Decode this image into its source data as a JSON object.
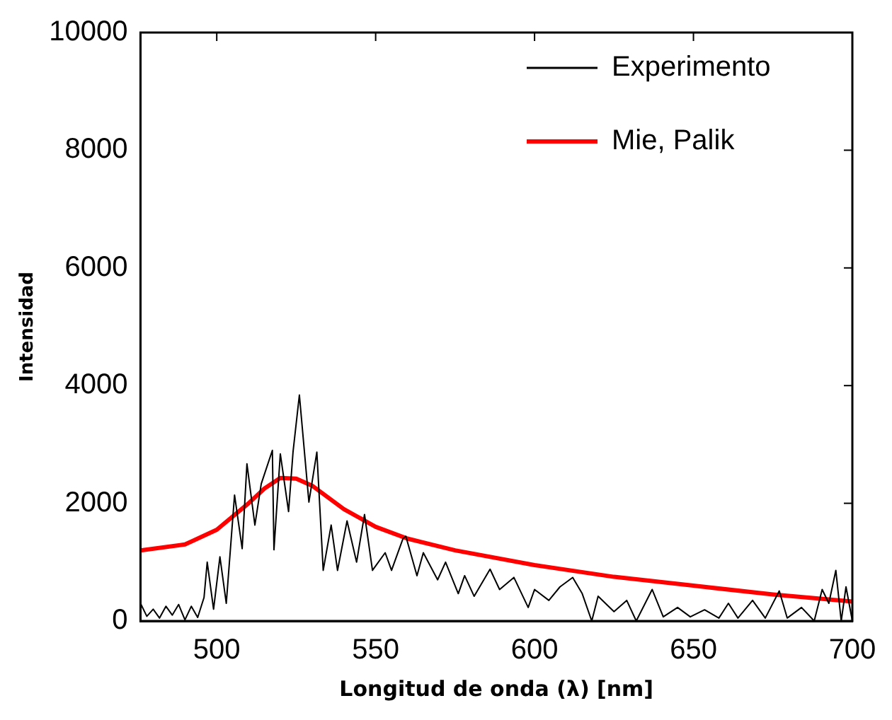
{
  "chart_data": {
    "type": "line",
    "xlabel": "Longitud de onda (λ) [nm]",
    "ylabel": "Intensidad",
    "xlim": [
      476,
      700
    ],
    "xticks": [
      500,
      550,
      600,
      650,
      700
    ],
    "ylim": [
      0,
      10000
    ],
    "yticks": [
      0,
      2000,
      4000,
      6000,
      8000,
      10000
    ],
    "grid": false,
    "legend": "top right",
    "marker": "none",
    "line_style": "solid",
    "series": [
      {
        "name": "Experimento",
        "color": "#000000",
        "x": [
          476,
          478,
          480,
          482,
          484,
          486,
          488,
          490,
          492,
          494,
          496,
          497,
          499,
          501,
          503,
          505.6,
          508,
          509.5,
          512,
          514,
          517.5,
          518,
          520,
          522.6,
          524,
          526,
          529,
          531.5,
          533.5,
          536,
          538,
          541,
          544,
          546.5,
          549,
          553,
          555,
          558.6,
          559.5,
          563,
          565,
          569.5,
          572,
          576,
          578,
          581,
          586,
          589,
          593.5,
          598,
          600,
          604.5,
          608,
          612,
          615,
          618,
          620,
          625,
          629,
          632,
          637,
          640.5,
          645,
          649,
          653.5,
          658,
          661,
          664,
          668.6,
          672.6,
          677,
          679.5,
          684,
          688,
          690.5,
          692.6,
          694.8,
          696.5,
          698,
          700
        ],
        "values": [
          300,
          80,
          200,
          50,
          250,
          100,
          280,
          20,
          250,
          60,
          400,
          1000,
          200,
          1090,
          300,
          2140,
          1230,
          2670,
          1630,
          2330,
          2900,
          1210,
          2840,
          1860,
          2870,
          3840,
          2020,
          2870,
          860,
          1630,
          860,
          1700,
          1000,
          1810,
          860,
          1160,
          860,
          1400,
          1440,
          770,
          1160,
          700,
          1000,
          465,
          770,
          420,
          880,
          535,
          740,
          230,
          535,
          350,
          580,
          740,
          465,
          0,
          420,
          160,
          350,
          0,
          535,
          70,
          230,
          70,
          190,
          50,
          300,
          50,
          350,
          50,
          510,
          50,
          230,
          0,
          535,
          300,
          860,
          0,
          580,
          0
        ]
      },
      {
        "name": "Mie, Palik",
        "color": "#ff0000",
        "x": [
          476,
          490,
          500,
          510,
          515,
          520,
          525,
          530,
          540,
          550,
          560,
          575,
          600,
          625,
          650,
          675,
          700
        ],
        "values": [
          1200,
          1300,
          1550,
          2000,
          2250,
          2430,
          2420,
          2300,
          1900,
          1600,
          1400,
          1200,
          950,
          750,
          600,
          450,
          330
        ]
      }
    ]
  }
}
